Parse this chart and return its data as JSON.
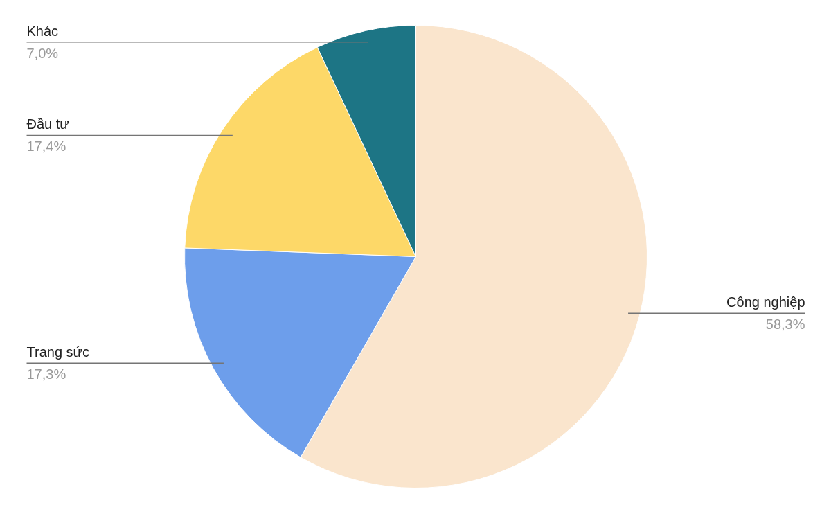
{
  "chart_data": {
    "type": "pie",
    "categories": [
      "Công nghiệp",
      "Trang sức",
      "Đầu tư",
      "Khác"
    ],
    "values": [
      58.3,
      17.3,
      17.4,
      7.0
    ],
    "colors": [
      "#fae5cd",
      "#6d9eeb",
      "#fdd868",
      "#1d7585"
    ],
    "value_labels": [
      "58,3%",
      "17,3%",
      "17,4%",
      "7,0%"
    ]
  }
}
